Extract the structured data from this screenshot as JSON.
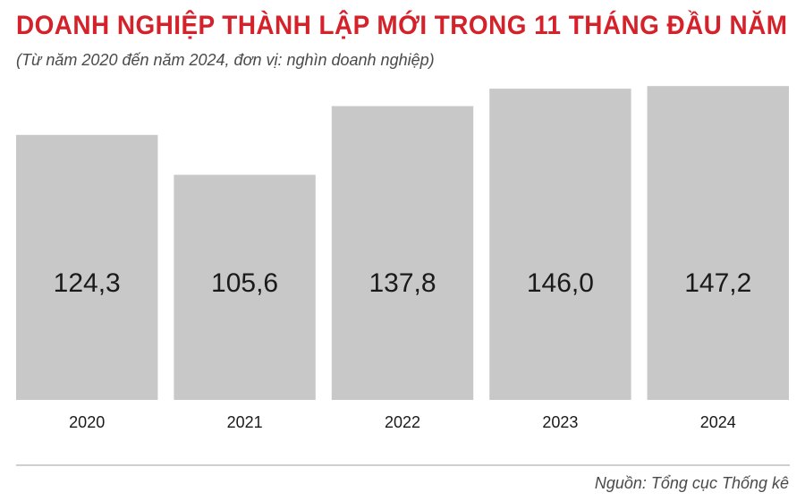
{
  "chart_data": {
    "type": "bar",
    "title": "DOANH NGHIỆP THÀNH LẬP MỚI TRONG 11 THÁNG ĐẦU NĂM",
    "subtitle": "(Từ năm 2020 đến năm 2024, đơn vị: nghìn doanh nghiệp)",
    "categories": [
      "2020",
      "2021",
      "2022",
      "2023",
      "2024"
    ],
    "values": [
      124.3,
      105.6,
      137.8,
      146.0,
      147.2
    ],
    "value_labels": [
      "124,3",
      "105,6",
      "137,8",
      "146,0",
      "147,2"
    ],
    "xlabel": "",
    "ylabel": "",
    "ylim": [
      0,
      150
    ],
    "grid": false,
    "legend": "none",
    "colors": {
      "title": "#d4212a",
      "bar": "#c9c8c9",
      "text": "#1a1a1a",
      "muted_text": "#4a4a4a",
      "divider": "#cfcfcf"
    }
  },
  "source": "Nguồn: Tổng cục Thống kê"
}
